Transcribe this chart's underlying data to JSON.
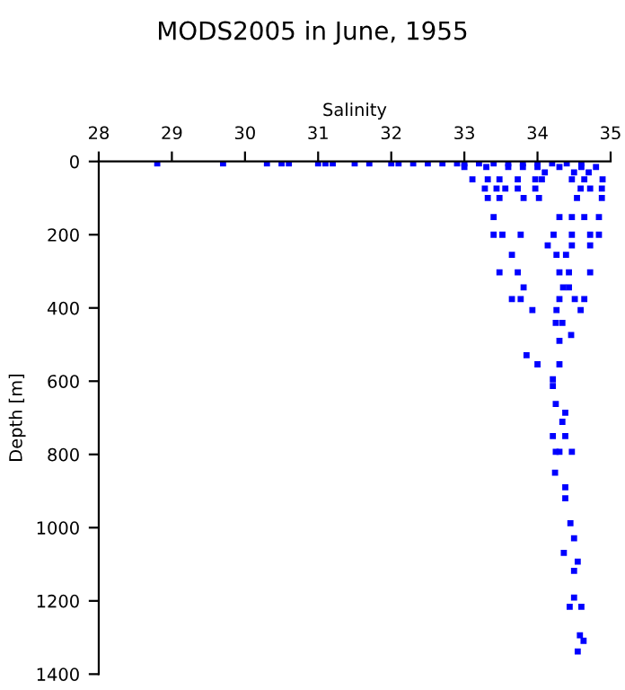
{
  "chart_data": {
    "type": "scatter",
    "title": "MODS2005 in June, 1955",
    "xlabel": "Salinity",
    "ylabel": "Depth [m]",
    "xlim": [
      28,
      35
    ],
    "xticks": [
      28,
      29,
      30,
      31,
      32,
      33,
      34,
      35
    ],
    "ylim": [
      1400,
      0
    ],
    "yticks": [
      0,
      200,
      400,
      600,
      800,
      1000,
      1200,
      1400
    ],
    "marker": "square",
    "grid": false,
    "series": [
      {
        "color": "#0000ff",
        "x": [
          28.8,
          29.7,
          30.3,
          30.5,
          30.6,
          31.0,
          31.1,
          31.2,
          31.5,
          31.7,
          32.0,
          32.1,
          32.3,
          32.5,
          32.7,
          32.9,
          33.0,
          33.2,
          33.4,
          33.6,
          33.8,
          34.0,
          34.2,
          34.4,
          34.6,
          33.0,
          33.3,
          33.6,
          33.8,
          34.0,
          34.3,
          34.6,
          34.8,
          34.1,
          34.5,
          34.7,
          33.11,
          33.32,
          33.48,
          33.73,
          33.97,
          34.06,
          34.47,
          34.64,
          34.89,
          33.28,
          33.44,
          33.56,
          33.73,
          33.97,
          34.59,
          34.72,
          34.88,
          33.32,
          33.48,
          33.81,
          34.02,
          34.54,
          34.88,
          33.4,
          34.3,
          34.47,
          34.64,
          34.84,
          33.4,
          33.52,
          33.77,
          34.22,
          34.47,
          34.72,
          34.84,
          34.14,
          34.47,
          34.72,
          33.65,
          34.26,
          34.39,
          33.48,
          33.73,
          34.3,
          34.43,
          34.72,
          33.81,
          34.35,
          34.43,
          33.65,
          33.77,
          34.3,
          34.51,
          34.64,
          33.93,
          34.26,
          34.59,
          34.25,
          34.34,
          34.46,
          34.3,
          33.85,
          34.3,
          34.0,
          34.21,
          34.21,
          34.25,
          34.38,
          34.34,
          34.21,
          34.38,
          34.3,
          34.25,
          34.47,
          34.24,
          34.38,
          34.38,
          34.45,
          34.5,
          34.36,
          34.55,
          34.5,
          34.5,
          34.44,
          34.6,
          34.58,
          34.63,
          34.55
        ],
        "values": [
          5,
          5,
          5,
          5,
          5,
          5,
          5,
          5,
          5,
          5,
          5,
          5,
          5,
          5,
          5,
          5,
          5,
          5,
          5,
          5,
          5,
          5,
          5,
          5,
          5,
          15,
          15,
          15,
          15,
          15,
          15,
          15,
          15,
          30,
          30,
          30,
          49,
          49,
          49,
          49,
          49,
          49,
          49,
          49,
          49,
          74,
          74,
          74,
          74,
          74,
          74,
          74,
          74,
          100,
          100,
          100,
          100,
          100,
          100,
          152,
          152,
          152,
          152,
          152,
          200,
          200,
          200,
          200,
          200,
          200,
          200,
          229,
          229,
          229,
          255,
          255,
          255,
          303,
          303,
          303,
          303,
          303,
          344,
          344,
          344,
          376,
          376,
          376,
          376,
          376,
          406,
          406,
          406,
          441,
          441,
          474,
          490,
          529,
          554,
          554,
          595,
          613,
          662,
          686,
          711,
          750,
          750,
          793,
          793,
          793,
          850,
          890,
          920,
          988,
          1029,
          1069,
          1093,
          1118,
          1191,
          1216,
          1216,
          1294,
          1309,
          1338
        ]
      }
    ]
  }
}
